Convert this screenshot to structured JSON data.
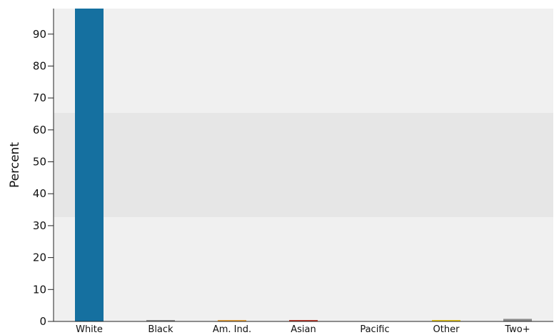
{
  "chart_data": {
    "type": "bar",
    "title": "",
    "xlabel": "",
    "ylabel": "Percent",
    "categories": [
      "White",
      "Black",
      "Am. Ind.",
      "Asian",
      "Pacific",
      "Other",
      "Two+"
    ],
    "values": [
      98.4,
      0.1,
      0.3,
      0.3,
      0.0,
      0.1,
      0.8
    ],
    "ylim": [
      0,
      98
    ],
    "yticks": [
      0,
      10,
      20,
      30,
      40,
      50,
      60,
      70,
      80,
      90
    ],
    "grid": false,
    "colors": {
      "plot_background": "#f0f0f0",
      "middle_band": "#e6e6e6",
      "axis": "#222222",
      "bars": [
        "#1570a0",
        "#8a8a8a",
        "#e9a23b",
        "#c0392b",
        "#4a9bd6",
        "#e6c619",
        "#8a8a8a"
      ]
    }
  }
}
